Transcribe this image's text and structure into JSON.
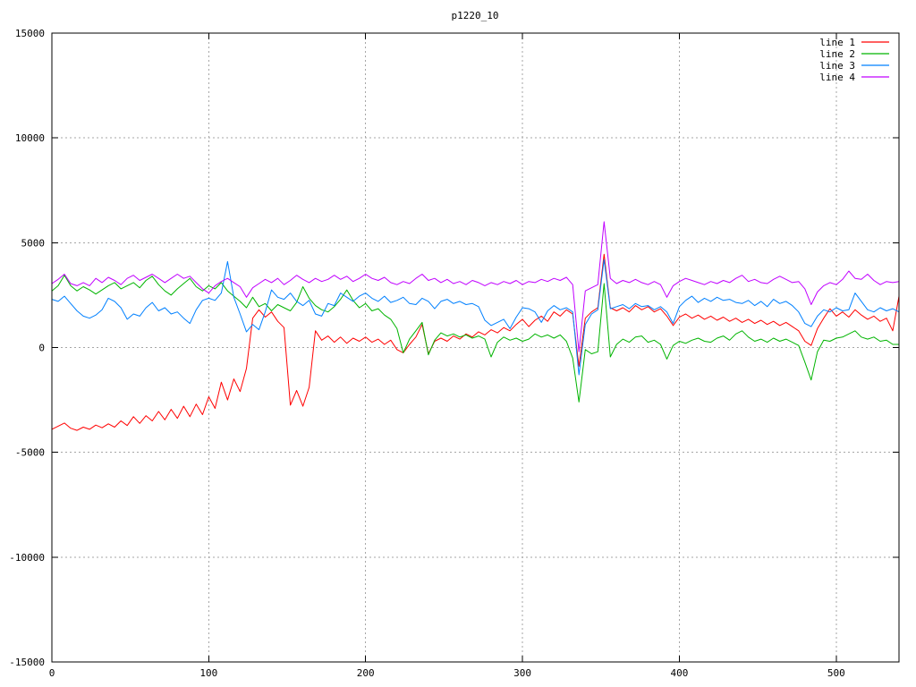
{
  "chart_data": {
    "type": "line",
    "title": "p1220_10",
    "xlabel": "",
    "ylabel": "",
    "xlim": [
      0,
      540
    ],
    "ylim": [
      -15000,
      15000
    ],
    "x_ticks": [
      0,
      100,
      200,
      300,
      400,
      500
    ],
    "y_ticks": [
      -15000,
      -10000,
      -5000,
      0,
      5000,
      10000,
      15000
    ],
    "grid": true,
    "grid_color": "#a6a6a6",
    "legend_position": "top-right-inside",
    "x_start": 0,
    "x_step": 4,
    "series": [
      {
        "name": "line 1",
        "color": "#ff0000",
        "values": [
          -3900,
          -3750,
          -3600,
          -3850,
          -3950,
          -3800,
          -3900,
          -3700,
          -3830,
          -3640,
          -3800,
          -3500,
          -3720,
          -3300,
          -3620,
          -3250,
          -3500,
          -3050,
          -3450,
          -2950,
          -3380,
          -2800,
          -3300,
          -2700,
          -3200,
          -2350,
          -2900,
          -1650,
          -2500,
          -1500,
          -2100,
          -1000,
          1400,
          1800,
          1450,
          1700,
          1250,
          950,
          -2750,
          -2050,
          -2800,
          -1900,
          800,
          350,
          550,
          250,
          500,
          200,
          450,
          300,
          500,
          250,
          400,
          150,
          350,
          -100,
          -250,
          150,
          500,
          1100,
          -300,
          300,
          450,
          300,
          550,
          400,
          650,
          500,
          750,
          600,
          850,
          700,
          950,
          800,
          1100,
          1350,
          1000,
          1300,
          1500,
          1250,
          1700,
          1500,
          1800,
          1600,
          -900,
          1400,
          1700,
          1900,
          4450,
          1900,
          1750,
          1900,
          1700,
          2000,
          1800,
          1950,
          1700,
          1850,
          1500,
          1050,
          1450,
          1600,
          1400,
          1550,
          1350,
          1500,
          1300,
          1450,
          1250,
          1400,
          1200,
          1350,
          1150,
          1300,
          1100,
          1250,
          1050,
          1200,
          1000,
          800,
          300,
          100,
          900,
          1400,
          1850,
          1500,
          1700,
          1450,
          1800,
          1550,
          1350,
          1500,
          1250,
          1400,
          800,
          2450
        ]
      },
      {
        "name": "line 2",
        "color": "#00b400",
        "values": [
          2700,
          2950,
          3450,
          2950,
          2700,
          2900,
          2750,
          2550,
          2750,
          2950,
          3100,
          2800,
          2950,
          3100,
          2850,
          3200,
          3400,
          3000,
          2700,
          2500,
          2800,
          3050,
          3300,
          2900,
          2700,
          2950,
          2800,
          3100,
          2700,
          2450,
          2200,
          1900,
          2400,
          1950,
          2100,
          1750,
          2050,
          1900,
          1750,
          2150,
          2900,
          2350,
          2000,
          1800,
          1700,
          1950,
          2300,
          2750,
          2250,
          1900,
          2100,
          1750,
          1850,
          1550,
          1350,
          900,
          -250,
          400,
          800,
          1200,
          -350,
          350,
          700,
          550,
          650,
          500,
          600,
          450,
          550,
          400,
          -450,
          250,
          500,
          350,
          450,
          300,
          400,
          650,
          500,
          600,
          450,
          600,
          300,
          -500,
          -2600,
          -100,
          -300,
          -200,
          3050,
          -450,
          150,
          400,
          250,
          500,
          550,
          250,
          350,
          150,
          -550,
          100,
          300,
          200,
          350,
          450,
          300,
          250,
          450,
          550,
          350,
          650,
          800,
          500,
          300,
          400,
          250,
          450,
          300,
          400,
          250,
          100,
          -700,
          -1550,
          -200,
          350,
          300,
          450,
          500,
          650,
          800,
          500,
          400,
          500,
          300,
          350,
          150,
          150
        ]
      },
      {
        "name": "line 3",
        "color": "#0080ff",
        "values": [
          2300,
          2200,
          2450,
          2100,
          1750,
          1500,
          1400,
          1550,
          1800,
          2350,
          2200,
          1900,
          1350,
          1600,
          1500,
          1900,
          2150,
          1750,
          1900,
          1600,
          1700,
          1400,
          1150,
          1800,
          2250,
          2350,
          2250,
          2600,
          4100,
          2400,
          1600,
          750,
          1100,
          850,
          1700,
          2750,
          2400,
          2300,
          2600,
          2200,
          2000,
          2250,
          1600,
          1500,
          2100,
          2000,
          2600,
          2400,
          2200,
          2450,
          2600,
          2350,
          2200,
          2450,
          2150,
          2250,
          2400,
          2100,
          2050,
          2350,
          2200,
          1850,
          2200,
          2300,
          2100,
          2200,
          2050,
          2100,
          1950,
          1300,
          1050,
          1200,
          1350,
          900,
          1450,
          1900,
          1850,
          1700,
          1200,
          1750,
          2000,
          1800,
          1900,
          1700,
          -1300,
          1100,
          1600,
          1800,
          4200,
          1850,
          1950,
          2050,
          1850,
          2100,
          1950,
          2000,
          1800,
          1950,
          1700,
          1150,
          1950,
          2250,
          2450,
          2150,
          2350,
          2200,
          2400,
          2250,
          2300,
          2150,
          2100,
          2250,
          2000,
          2200,
          1950,
          2300,
          2100,
          2200,
          2000,
          1700,
          1150,
          1000,
          1500,
          1800,
          1700,
          1900,
          1750,
          1800,
          2600,
          2200,
          1800,
          1700,
          1900,
          1750,
          1850,
          1700
        ]
      },
      {
        "name": "line 4",
        "color": "#c000ff",
        "values": [
          3050,
          3250,
          3500,
          3050,
          2950,
          3100,
          2950,
          3300,
          3100,
          3350,
          3200,
          3000,
          3300,
          3450,
          3200,
          3350,
          3500,
          3300,
          3100,
          3300,
          3500,
          3300,
          3400,
          3100,
          2800,
          2600,
          2950,
          3150,
          3300,
          3100,
          2900,
          2400,
          2850,
          3050,
          3250,
          3100,
          3300,
          3000,
          3200,
          3450,
          3250,
          3100,
          3300,
          3150,
          3250,
          3450,
          3250,
          3400,
          3150,
          3300,
          3500,
          3300,
          3200,
          3350,
          3100,
          3000,
          3150,
          3050,
          3300,
          3500,
          3200,
          3300,
          3100,
          3250,
          3050,
          3150,
          3000,
          3200,
          3100,
          2950,
          3100,
          3000,
          3150,
          3050,
          3200,
          3000,
          3150,
          3100,
          3250,
          3150,
          3300,
          3200,
          3350,
          3000,
          -200,
          2700,
          2850,
          3000,
          6000,
          3300,
          3050,
          3200,
          3100,
          3250,
          3100,
          3000,
          3150,
          3000,
          2400,
          2950,
          3150,
          3300,
          3200,
          3100,
          3000,
          3150,
          3050,
          3200,
          3100,
          3300,
          3450,
          3150,
          3250,
          3100,
          3050,
          3250,
          3400,
          3250,
          3100,
          3150,
          2800,
          2050,
          2650,
          2950,
          3100,
          3000,
          3250,
          3650,
          3300,
          3250,
          3500,
          3200,
          3000,
          3150,
          3100,
          3150
        ]
      }
    ]
  }
}
